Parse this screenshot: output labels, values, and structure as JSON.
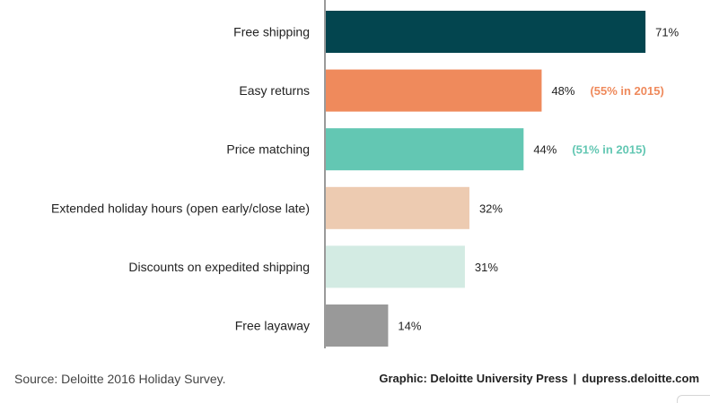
{
  "chart_data": {
    "type": "bar",
    "orientation": "horizontal",
    "categories": [
      "Free shipping",
      "Easy returns",
      "Price matching",
      "Extended holiday hours (open early/close late)",
      "Discounts on expedited shipping",
      "Free layaway"
    ],
    "values": [
      71,
      48,
      44,
      32,
      31,
      14
    ],
    "value_labels": [
      "71%",
      "48%",
      "44%",
      "32%",
      "31%",
      "14%"
    ],
    "comparison_labels": [
      "",
      "(55% in 2015)",
      "(51% in 2015)",
      "",
      "",
      ""
    ],
    "bar_colors": [
      "#03454f",
      "#ef8a5c",
      "#63c7b3",
      "#edcbb1",
      "#d3ebe3",
      "#999999"
    ],
    "comparison_colors": [
      "",
      "#ef8a5c",
      "#63c7b3",
      "",
      "",
      ""
    ],
    "axis_color": "#9a9a9a",
    "xlim": [
      0,
      100
    ],
    "grid": false,
    "legend": "none"
  },
  "footer": {
    "source": "Source: Deloitte 2016 Holiday Survey.",
    "credit": "Graphic: Deloitte University Press",
    "separator": "|",
    "url": "dupress.deloitte.com"
  }
}
